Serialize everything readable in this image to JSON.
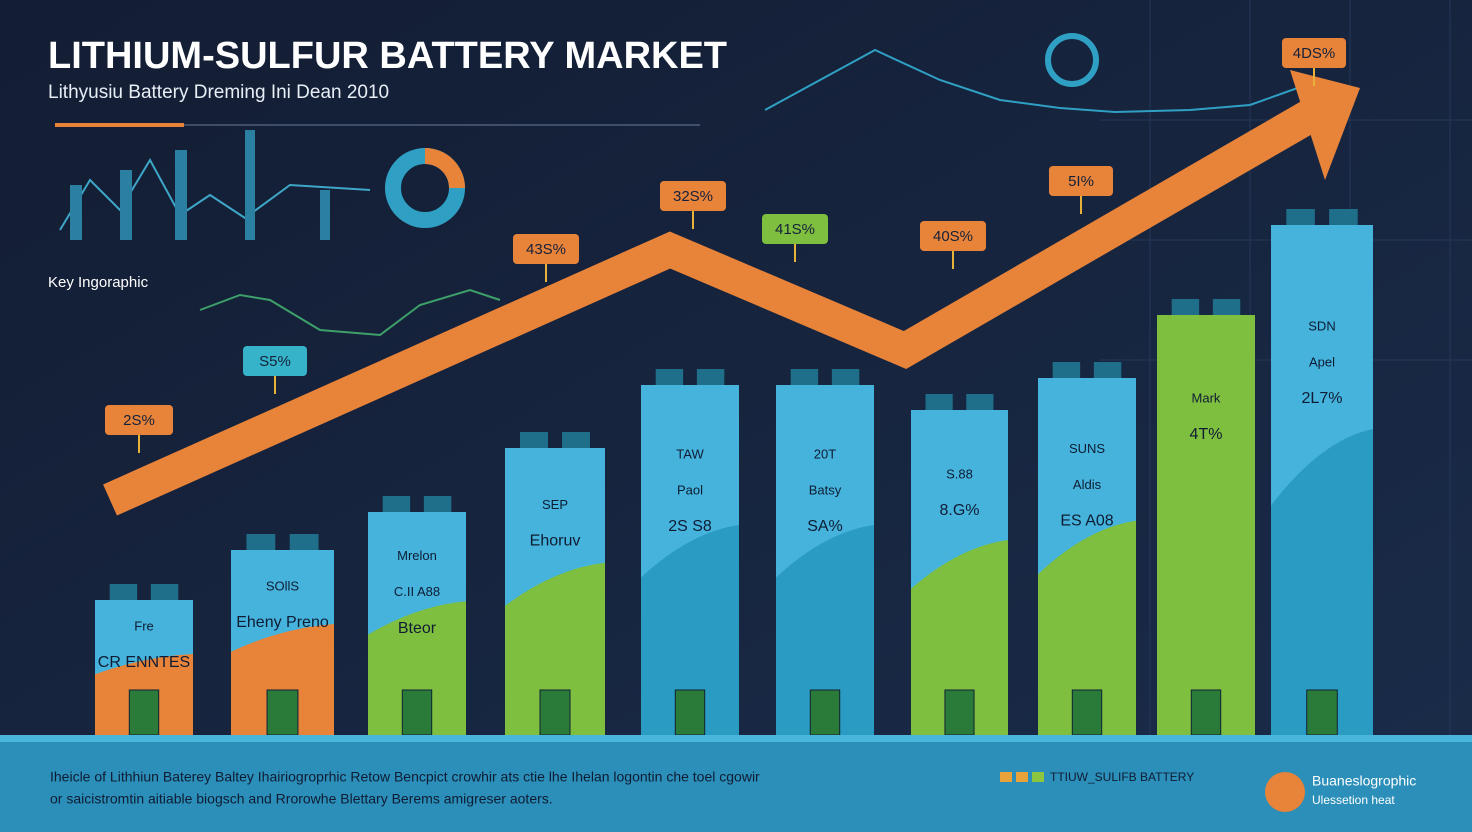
{
  "header": {
    "title": "LITHIUM-SULFUR BATTERY MARKET",
    "subtitle": "Lithyusiu Battery Dreming Ini Dean 2010"
  },
  "key_label": "Key Ingoraphic",
  "callouts": [
    {
      "text": "2S%",
      "kind": "orange"
    },
    {
      "text": "S5%",
      "kind": "teal"
    },
    {
      "text": "43S%",
      "kind": "orange"
    },
    {
      "text": "32S%",
      "kind": "orange"
    },
    {
      "text": "41S%",
      "kind": "green"
    },
    {
      "text": "40S%",
      "kind": "orange"
    },
    {
      "text": "5I%",
      "kind": "orange"
    },
    {
      "text": "4DS%",
      "kind": "orange"
    }
  ],
  "bars": [
    {
      "lines": [
        "Fre",
        "CR ENNTES"
      ]
    },
    {
      "lines": [
        "SOllS",
        "Eheny Preno"
      ]
    },
    {
      "lines": [
        "Mrelon",
        "C.II A88",
        "Bteor"
      ]
    },
    {
      "lines": [
        "SEP",
        "Ehoruv"
      ]
    },
    {
      "lines": [
        "TAW",
        "Paol",
        "2S S8"
      ]
    },
    {
      "lines": [
        "20T",
        "Batsy",
        "SA%"
      ]
    },
    {
      "lines": [
        "S.88",
        "8.G%"
      ]
    },
    {
      "lines": [
        "SUNS",
        "Aldis",
        "ES A08"
      ]
    },
    {
      "lines": [
        "Mark",
        "4T%"
      ]
    },
    {
      "lines": [
        "SDN",
        "Apel",
        "2L7%"
      ]
    }
  ],
  "footer": {
    "lines": [
      "Iheicle of Lithhiun Baterey Baltey Ihairiogroprhic Retow Bencpict crowhir ats ctie lhe Ihelan logontin che toel cgowir",
      "or saicistromtin aitiable biogsch and Rrorowhe Blettary Berems amigreser aoters."
    ],
    "legend": "TTIUW_SULIFB BATTERY",
    "brand": [
      "Buaneslogrophic",
      "Ulessetion heat"
    ]
  }
}
